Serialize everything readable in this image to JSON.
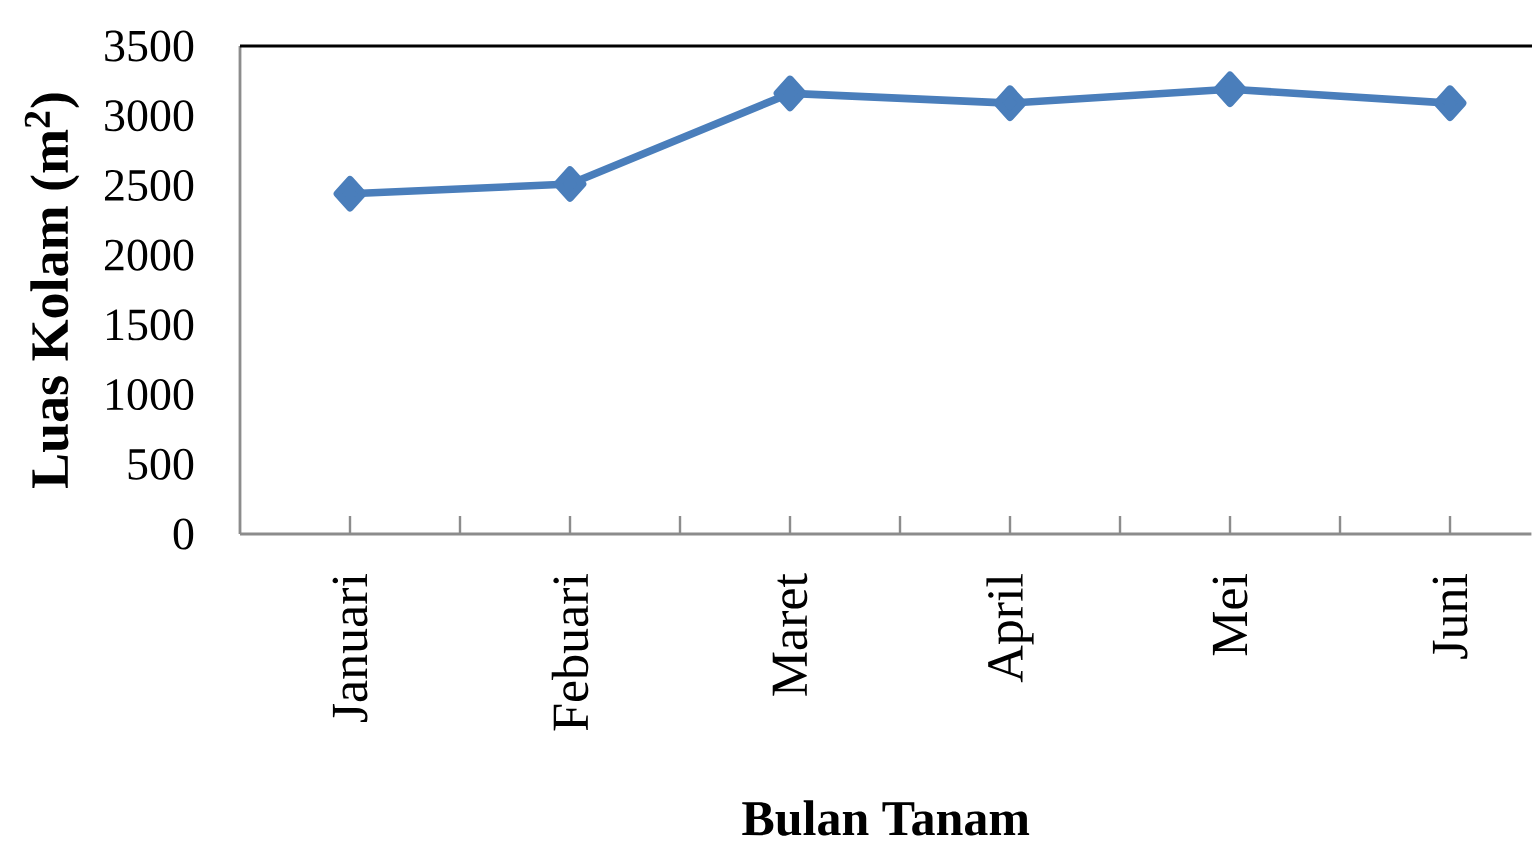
{
  "chart_data": {
    "type": "line",
    "xlabel": "Bulan Tanam",
    "ylabel": "Luas Kolam (m$^{2}$)",
    "categories": [
      "Januari",
      "Febuari",
      "Maret",
      "April",
      "Mei",
      "Juni"
    ],
    "series": [
      {
        "color": "#4a7ebb",
        "values": [
          2440,
          2510,
          3160,
          3090,
          3190,
          3090
        ]
      }
    ],
    "ylim": [
      0,
      3500
    ],
    "yticks": [
      0,
      500,
      1000,
      1500,
      2000,
      2500,
      3000,
      3500
    ],
    "marker": "diamond",
    "line_style": "solid"
  }
}
